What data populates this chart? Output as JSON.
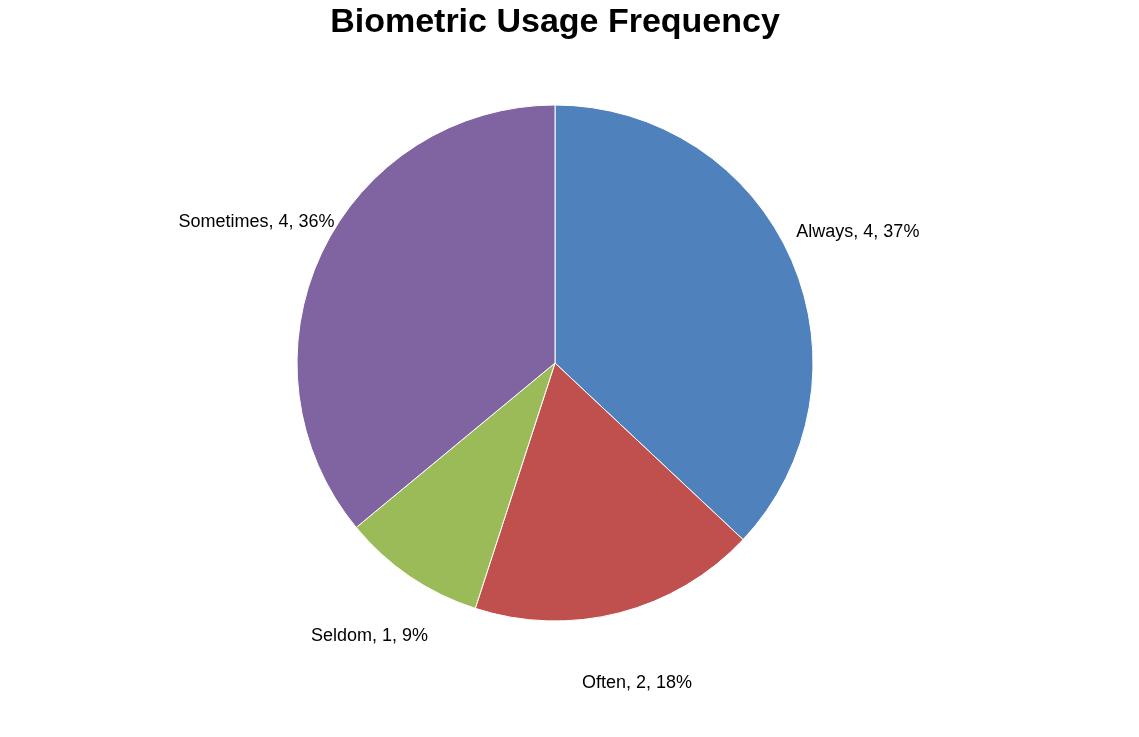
{
  "chart_data": {
    "type": "pie",
    "title": "Biometric Usage Frequency",
    "categories": [
      "Always",
      "Often",
      "Seldom",
      "Sometimes"
    ],
    "values": [
      37,
      18,
      9,
      36
    ],
    "value_labels": [
      "4, 37%",
      "2, 18%",
      "1, 9%",
      "4, 36%"
    ],
    "colors": [
      "#4f81bd",
      "#c0504d",
      "#9bbb59",
      "#8064a2"
    ],
    "legend": false
  }
}
